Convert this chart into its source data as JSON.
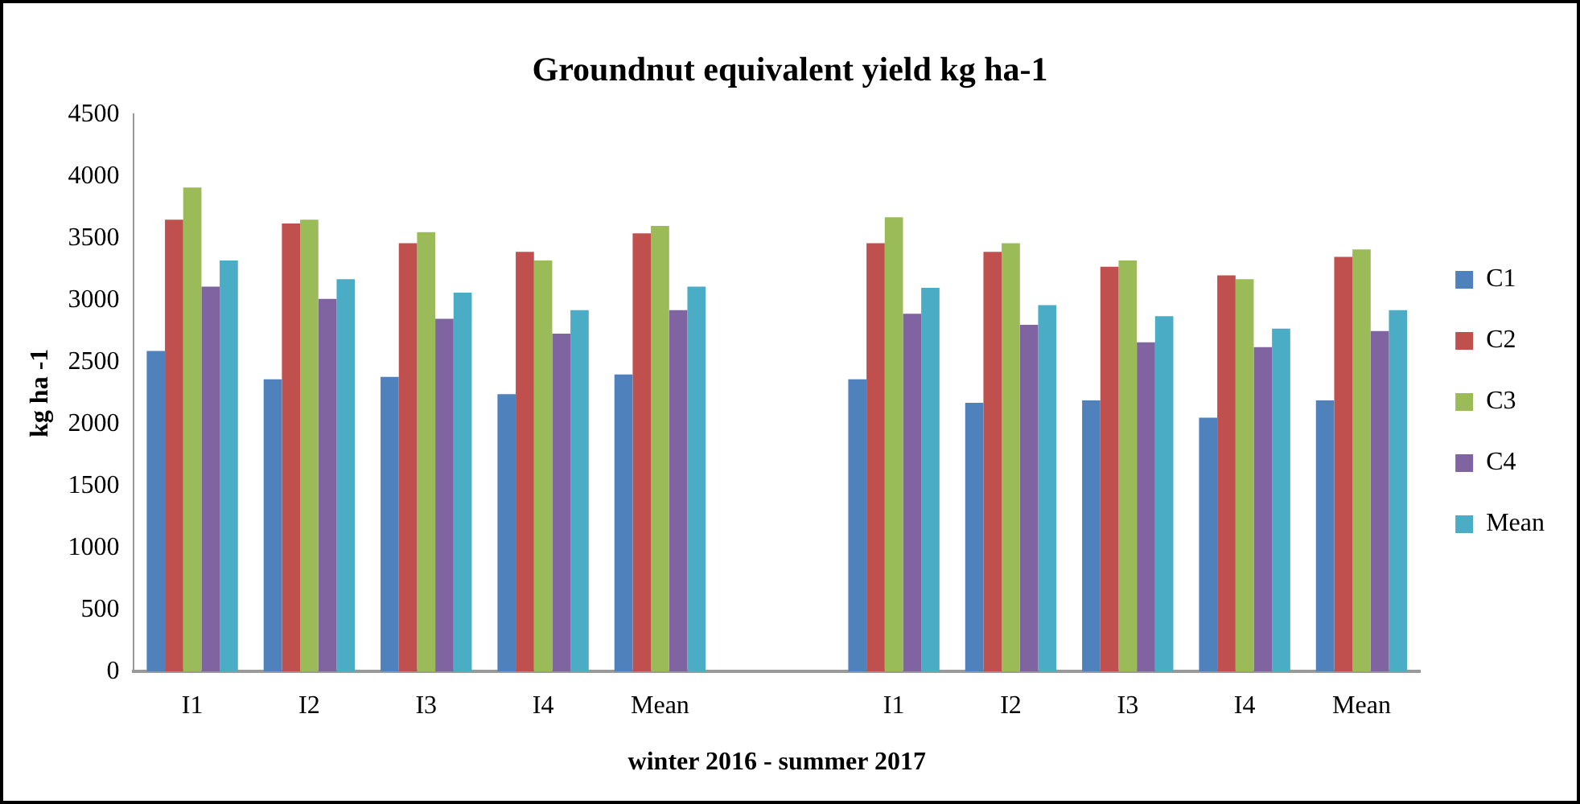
{
  "chart_data": {
    "type": "bar",
    "title": "Groundnut equivalent yield kg ha-1",
    "xlabel": "winter 2016 - summer 2017",
    "ylabel": "kg ha -1",
    "categories": [
      "I1",
      "I2",
      "I3",
      "I4",
      "Mean",
      null,
      "I1",
      "I2",
      "I3",
      "I4",
      "Mean"
    ],
    "series": [
      {
        "name": "C1",
        "color": "#4f81bd",
        "values": [
          2590,
          2360,
          2380,
          2240,
          2400,
          null,
          2360,
          2170,
          2190,
          2050,
          2190
        ]
      },
      {
        "name": "C2",
        "color": "#c0504d",
        "values": [
          3650,
          3620,
          3460,
          3390,
          3540,
          null,
          3460,
          3390,
          3270,
          3200,
          3350
        ]
      },
      {
        "name": "C3",
        "color": "#9bbb59",
        "values": [
          3910,
          3650,
          3550,
          3320,
          3600,
          null,
          3670,
          3460,
          3320,
          3170,
          3410
        ]
      },
      {
        "name": "C4",
        "color": "#8064a2",
        "values": [
          3110,
          3010,
          2850,
          2730,
          2920,
          null,
          2890,
          2800,
          2660,
          2620,
          2750
        ]
      },
      {
        "name": "Mean",
        "color": "#4bacc6",
        "values": [
          3320,
          3170,
          3060,
          2920,
          3110,
          null,
          3100,
          2960,
          2870,
          2770,
          2920
        ]
      }
    ],
    "ylim": [
      0,
      4500
    ],
    "yticks": [
      0,
      500,
      1000,
      1500,
      2000,
      2500,
      3000,
      3500,
      4000,
      4500
    ],
    "grid": false,
    "legend": "right"
  }
}
